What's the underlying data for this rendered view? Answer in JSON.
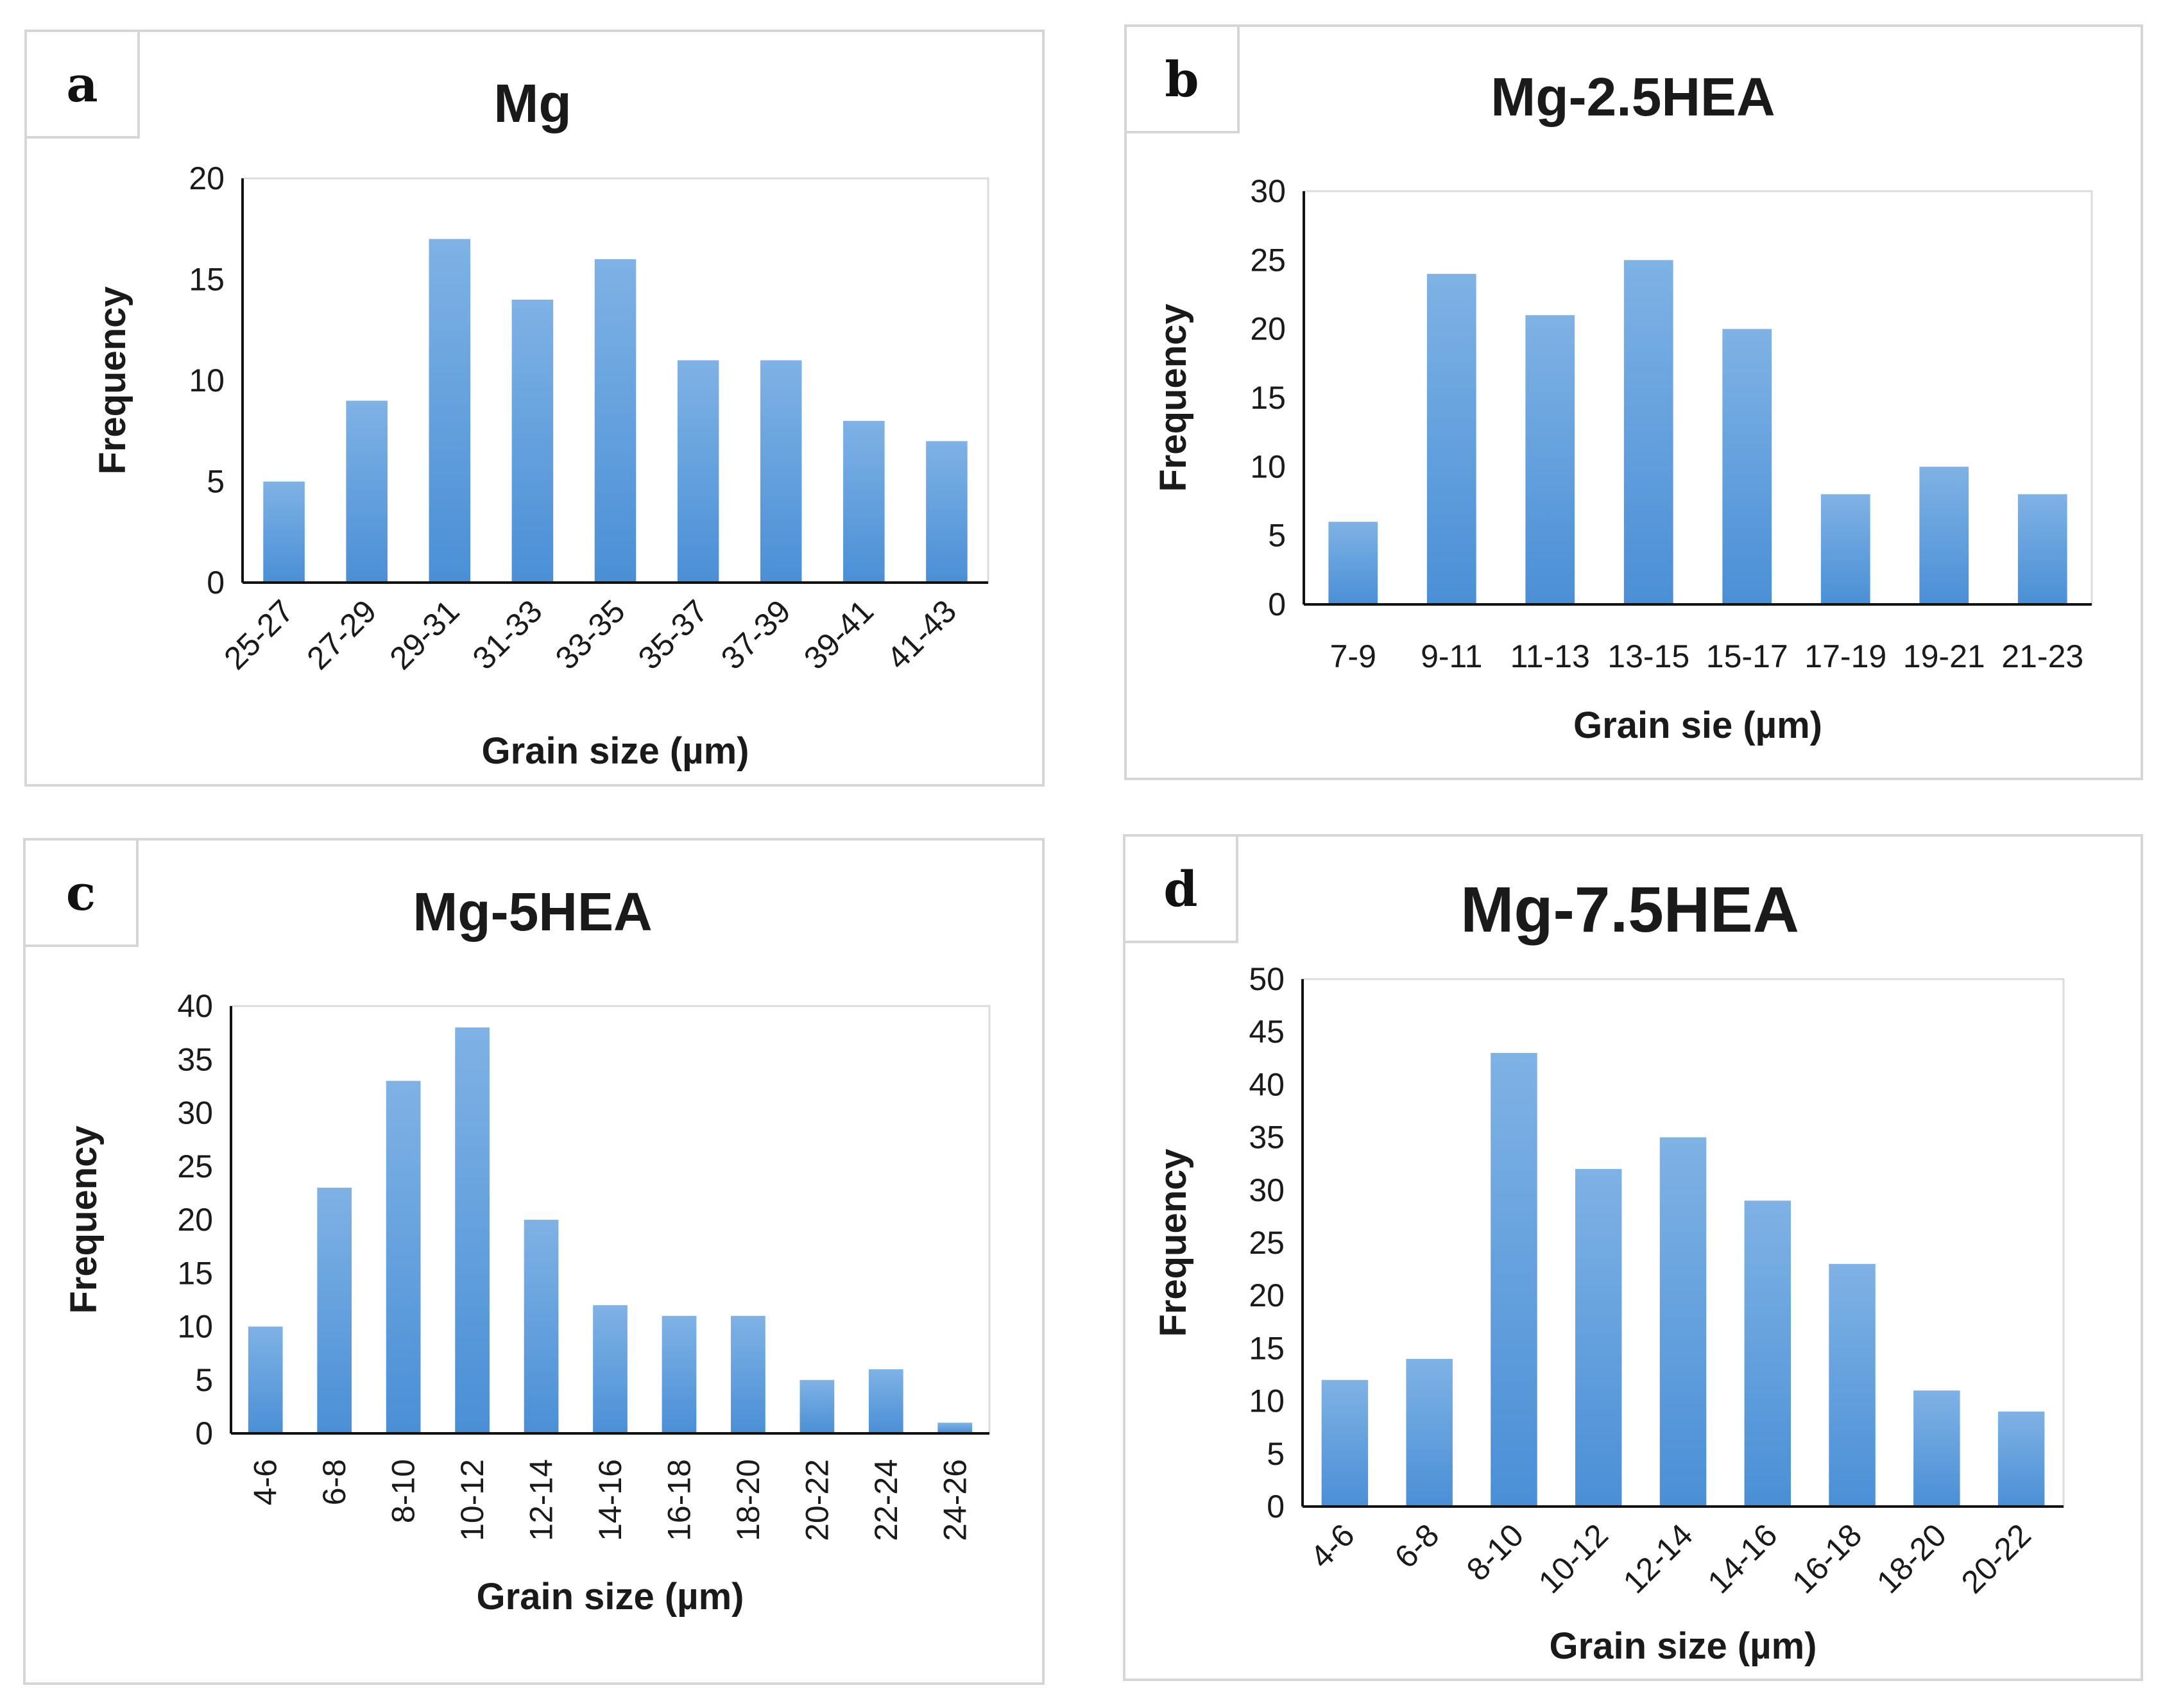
{
  "colors": {
    "bar_top": "#7fb2e5",
    "bar_bottom": "#4a8fd6",
    "axis": "#111111",
    "frame": "#d6d6d6"
  },
  "chart_data": [
    {
      "type": "bar",
      "panel_label": "a",
      "title": "Mg",
      "ylabel": "Frequency",
      "xlabel": "Grain size (µm)",
      "ylim": [
        0,
        20
      ],
      "yticks": [
        "0",
        "5",
        "10",
        "15",
        "20"
      ],
      "categories": [
        "25-27",
        "27-29",
        "29-31",
        "31-33",
        "33-35",
        "35-37",
        "37-39",
        "39-41",
        "41-43"
      ],
      "values": [
        5,
        9,
        17,
        14,
        16,
        11,
        11,
        8,
        7
      ]
    },
    {
      "type": "bar",
      "panel_label": "b",
      "title": "Mg-2.5HEA",
      "ylabel": "Frequency",
      "xlabel": "Grain sie (µm)",
      "ylim": [
        0,
        30
      ],
      "yticks": [
        "0",
        "5",
        "10",
        "15",
        "20",
        "25",
        "30"
      ],
      "categories": [
        "7-9",
        "9-11",
        "11-13",
        "13-15",
        "15-17",
        "17-19",
        "19-21",
        "21-23"
      ],
      "values": [
        6,
        24,
        21,
        25,
        20,
        8,
        10,
        8
      ]
    },
    {
      "type": "bar",
      "panel_label": "c",
      "title": "Mg-5HEA",
      "ylabel": "Frequency",
      "xlabel": "Grain size (µm)",
      "ylim": [
        0,
        40
      ],
      "yticks": [
        "0",
        "5",
        "10",
        "15",
        "20",
        "25",
        "30",
        "35",
        "40"
      ],
      "categories": [
        "4-6",
        "6-8",
        "8-10",
        "10-12",
        "12-14",
        "14-16",
        "16-18",
        "18-20",
        "20-22",
        "22-24",
        "24-26"
      ],
      "values": [
        10,
        23,
        33,
        38,
        20,
        12,
        11,
        11,
        5,
        6,
        1
      ]
    },
    {
      "type": "bar",
      "panel_label": "d",
      "title": "Mg-7.5HEA",
      "ylabel": "Frequency",
      "xlabel": "Grain size (µm)",
      "ylim": [
        0,
        50
      ],
      "yticks": [
        "0",
        "5",
        "10",
        "15",
        "20",
        "25",
        "30",
        "35",
        "40",
        "45",
        "50"
      ],
      "categories": [
        "4-6",
        "6-8",
        "8-10",
        "10-12",
        "12-14",
        "14-16",
        "16-18",
        "18-20",
        "20-22"
      ],
      "values": [
        12,
        14,
        43,
        32,
        35,
        29,
        23,
        11,
        9
      ]
    }
  ]
}
